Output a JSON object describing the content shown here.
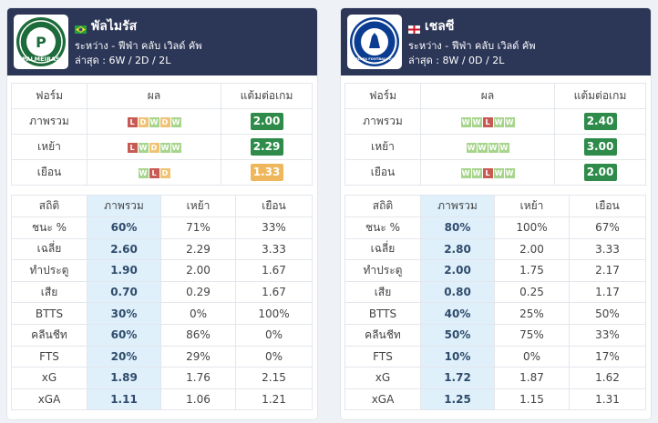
{
  "teams": [
    {
      "name": "พัลไมรัส",
      "flag": "brazil-flag",
      "logo_icon": "palmeiras-crest-icon",
      "logo_text": "PALMEIRAS",
      "competition": "ระหว่าง - ฟีฟ่า คลับ เวิลด์ คัพ",
      "recent": "ล่าสุด : 6W / 2D / 2L",
      "form_headers": [
        "ฟอร์ม",
        "ผล",
        "แต้มต่อเกม"
      ],
      "form_rows": [
        {
          "label": "ภาพรวม",
          "results": [
            "L",
            "D",
            "W",
            "D",
            "W"
          ],
          "ppg": "2.00",
          "ppg_color": "#2e8b4a"
        },
        {
          "label": "เหย้า",
          "results": [
            "L",
            "W",
            "D",
            "W",
            "W"
          ],
          "ppg": "2.29",
          "ppg_color": "#2e8b4a"
        },
        {
          "label": "เยือน",
          "results": [
            "W",
            "L",
            "D"
          ],
          "ppg": "1.33",
          "ppg_color": "#efb75b"
        }
      ],
      "stat_headers": [
        "สถิติ",
        "ภาพรวม",
        "เหย้า",
        "เยือน"
      ],
      "stat_rows": [
        {
          "label": "ชนะ %",
          "overall": "60%",
          "home": "71%",
          "away": "33%"
        },
        {
          "label": "เฉลี่ย",
          "overall": "2.60",
          "home": "2.29",
          "away": "3.33"
        },
        {
          "label": "ทำประตู",
          "overall": "1.90",
          "home": "2.00",
          "away": "1.67"
        },
        {
          "label": "เสีย",
          "overall": "0.70",
          "home": "0.29",
          "away": "1.67"
        },
        {
          "label": "BTTS",
          "overall": "30%",
          "home": "0%",
          "away": "100%"
        },
        {
          "label": "คลีนชีท",
          "overall": "60%",
          "home": "86%",
          "away": "0%"
        },
        {
          "label": "FTS",
          "overall": "20%",
          "home": "29%",
          "away": "0%"
        },
        {
          "label": "xG",
          "overall": "1.89",
          "home": "1.76",
          "away": "2.15"
        },
        {
          "label": "xGA",
          "overall": "1.11",
          "home": "1.06",
          "away": "1.21"
        }
      ]
    },
    {
      "name": "เชลซี",
      "flag": "england-flag",
      "logo_icon": "chelsea-crest-icon",
      "logo_text": "CHELSEA FOOTBALL CLUB",
      "competition": "ระหว่าง - ฟีฟ่า คลับ เวิลด์ คัพ",
      "recent": "ล่าสุด : 8W / 0D / 2L",
      "form_headers": [
        "ฟอร์ม",
        "ผล",
        "แต้มต่อเกม"
      ],
      "form_rows": [
        {
          "label": "ภาพรวม",
          "results": [
            "W",
            "W",
            "L",
            "W",
            "W"
          ],
          "ppg": "2.40",
          "ppg_color": "#2e8b4a"
        },
        {
          "label": "เหย้า",
          "results": [
            "W",
            "W",
            "W",
            "W"
          ],
          "ppg": "3.00",
          "ppg_color": "#2e8b4a"
        },
        {
          "label": "เยือน",
          "results": [
            "W",
            "W",
            "L",
            "W",
            "W"
          ],
          "ppg": "2.00",
          "ppg_color": "#2e8b4a"
        }
      ],
      "stat_headers": [
        "สถิติ",
        "ภาพรวม",
        "เหย้า",
        "เยือน"
      ],
      "stat_rows": [
        {
          "label": "ชนะ %",
          "overall": "80%",
          "home": "100%",
          "away": "67%"
        },
        {
          "label": "เฉลี่ย",
          "overall": "2.80",
          "home": "2.00",
          "away": "3.33"
        },
        {
          "label": "ทำประตู",
          "overall": "2.00",
          "home": "1.75",
          "away": "2.17"
        },
        {
          "label": "เสีย",
          "overall": "0.80",
          "home": "0.25",
          "away": "1.17"
        },
        {
          "label": "BTTS",
          "overall": "40%",
          "home": "25%",
          "away": "50%"
        },
        {
          "label": "คลีนชีท",
          "overall": "50%",
          "home": "75%",
          "away": "33%"
        },
        {
          "label": "FTS",
          "overall": "10%",
          "home": "0%",
          "away": "17%"
        },
        {
          "label": "xG",
          "overall": "1.72",
          "home": "1.87",
          "away": "1.62"
        },
        {
          "label": "xGA",
          "overall": "1.25",
          "home": "1.15",
          "away": "1.31"
        }
      ]
    }
  ]
}
